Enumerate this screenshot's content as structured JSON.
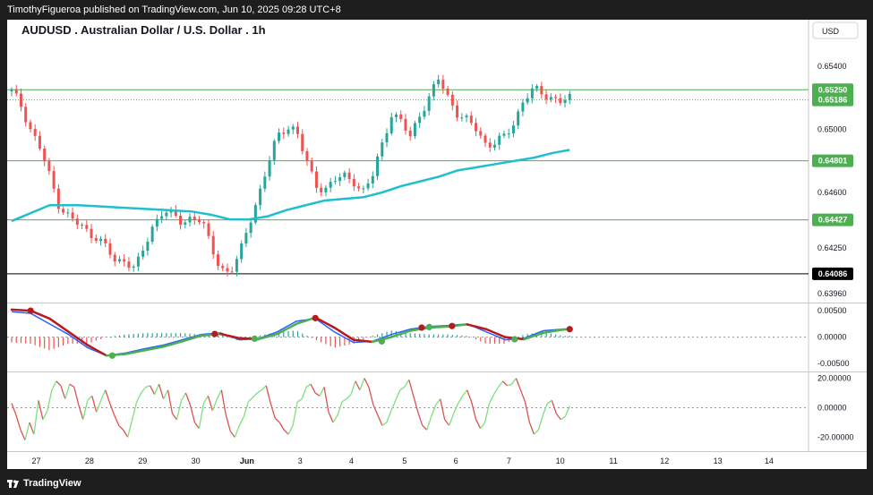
{
  "header": {
    "publisher_line": "TimothyFigueroa published on TradingView.com, Jun 10, 2025 09:28 UTC+8"
  },
  "footer": {
    "brand": "TradingView"
  },
  "colors": {
    "bull_candle": "#26a69a",
    "bear_candle": "#ef5350",
    "ma_line": "#1fbfcf",
    "level_line": "#4caf50",
    "macd_line": "#2962ff",
    "signal_line_up": "#4caf50",
    "signal_line_down": "#b71c1c",
    "osc_up": "#7ee07e",
    "osc_down": "#e05050"
  },
  "chart_data": {
    "type": "candlestick",
    "symbol_title": "AUDUSD . Australian Dollar / U.S. Dollar . 1h",
    "currency": "USD",
    "x_tick_labels": [
      "27",
      "28",
      "29",
      "30",
      "Jun",
      "3",
      "4",
      "5",
      "6",
      "7",
      "10",
      "11",
      "12",
      "13",
      "14"
    ],
    "y_tick_labels": [
      "0.65400",
      "0.65000",
      "0.64600",
      "0.64250",
      "0.63960"
    ],
    "y_range": [
      0.6391,
      0.6558
    ],
    "horizontal_levels": [
      {
        "label": "0.65250",
        "value": 0.6525,
        "kind": "green"
      },
      {
        "label": "0.65186",
        "value": 0.65186,
        "kind": "current"
      },
      {
        "label": "0.64801",
        "value": 0.64801,
        "kind": "green"
      },
      {
        "label": "0.64427",
        "value": 0.64427,
        "kind": "green"
      },
      {
        "label": "0.64086",
        "value": 0.64086,
        "kind": "black"
      }
    ],
    "close_path": [
      [
        0.0,
        0.6524
      ],
      [
        0.5,
        0.6515
      ],
      [
        1.0,
        0.65
      ],
      [
        1.5,
        0.6488
      ],
      [
        2.0,
        0.647
      ],
      [
        2.5,
        0.6452
      ],
      [
        3.0,
        0.6445
      ],
      [
        3.5,
        0.644
      ],
      [
        4.0,
        0.6435
      ],
      [
        4.5,
        0.6432
      ],
      [
        5.0,
        0.6425
      ],
      [
        5.5,
        0.6415
      ],
      [
        6.0,
        0.6418
      ],
      [
        6.5,
        0.6412
      ],
      [
        7.0,
        0.6425
      ],
      [
        7.5,
        0.644
      ],
      [
        8.0,
        0.645
      ],
      [
        8.5,
        0.6445
      ],
      [
        9.0,
        0.644
      ],
      [
        9.5,
        0.6445
      ],
      [
        10.0,
        0.6443
      ],
      [
        10.5,
        0.6425
      ],
      [
        11.0,
        0.6412
      ],
      [
        11.5,
        0.641
      ],
      [
        12.0,
        0.642
      ],
      [
        12.5,
        0.644
      ],
      [
        13.0,
        0.6458
      ],
      [
        13.5,
        0.6478
      ],
      [
        14.0,
        0.6495
      ],
      [
        14.5,
        0.6502
      ],
      [
        15.0,
        0.65
      ],
      [
        15.5,
        0.648
      ],
      [
        16.0,
        0.6465
      ],
      [
        16.5,
        0.6462
      ],
      [
        17.0,
        0.6468
      ],
      [
        17.5,
        0.647
      ],
      [
        18.0,
        0.6468
      ],
      [
        18.5,
        0.646
      ],
      [
        19.0,
        0.647
      ],
      [
        19.5,
        0.649
      ],
      [
        20.0,
        0.651
      ],
      [
        20.5,
        0.6505
      ],
      [
        21.0,
        0.6495
      ],
      [
        21.5,
        0.651
      ],
      [
        22.0,
        0.652
      ],
      [
        22.5,
        0.6532
      ],
      [
        23.0,
        0.652
      ],
      [
        23.5,
        0.651
      ],
      [
        24.0,
        0.6505
      ],
      [
        24.5,
        0.65
      ],
      [
        25.0,
        0.649
      ],
      [
        25.5,
        0.6492
      ],
      [
        26.0,
        0.6495
      ],
      [
        26.5,
        0.6505
      ],
      [
        27.0,
        0.652
      ],
      [
        27.5,
        0.6525
      ],
      [
        28.0,
        0.6522
      ],
      [
        28.5,
        0.652
      ],
      [
        29.0,
        0.6518
      ],
      [
        29.4,
        0.6519
      ]
    ],
    "ma_path": [
      [
        0.0,
        0.6442
      ],
      [
        2.0,
        0.6452
      ],
      [
        3.5,
        0.6452
      ],
      [
        5.0,
        0.6451
      ],
      [
        6.5,
        0.645
      ],
      [
        8.0,
        0.6449
      ],
      [
        9.5,
        0.6448
      ],
      [
        10.5,
        0.6446
      ],
      [
        11.5,
        0.6443
      ],
      [
        12.5,
        0.6443
      ],
      [
        13.5,
        0.6445
      ],
      [
        14.5,
        0.6449
      ],
      [
        15.5,
        0.6452
      ],
      [
        16.5,
        0.6455
      ],
      [
        17.5,
        0.6456
      ],
      [
        18.5,
        0.6457
      ],
      [
        19.5,
        0.646
      ],
      [
        20.5,
        0.6464
      ],
      [
        21.5,
        0.6467
      ],
      [
        22.5,
        0.647
      ],
      [
        23.5,
        0.6474
      ],
      [
        24.5,
        0.6476
      ],
      [
        25.5,
        0.6478
      ],
      [
        26.5,
        0.648
      ],
      [
        27.5,
        0.6482
      ],
      [
        28.5,
        0.6485
      ],
      [
        29.4,
        0.6487
      ]
    ],
    "macd_panel": {
      "y_tick_labels": [
        "0.00500",
        "0.00000",
        "-0.00500"
      ],
      "y_range": [
        -0.0065,
        0.0062
      ],
      "macd_path": [
        [
          0.0,
          0.0048
        ],
        [
          1.0,
          0.0045
        ],
        [
          2.0,
          0.0025
        ],
        [
          3.0,
          0.0005
        ],
        [
          4.0,
          -0.002
        ],
        [
          5.0,
          -0.0035
        ],
        [
          6.0,
          -0.003
        ],
        [
          7.0,
          -0.0022
        ],
        [
          8.0,
          -0.0015
        ],
        [
          9.0,
          -0.0005
        ],
        [
          10.0,
          0.0005
        ],
        [
          11.0,
          0.0008
        ],
        [
          12.0,
          -0.0005
        ],
        [
          13.0,
          -0.0003
        ],
        [
          14.0,
          0.001
        ],
        [
          15.0,
          0.003
        ],
        [
          16.0,
          0.0035
        ],
        [
          17.0,
          0.001
        ],
        [
          18.0,
          -0.001
        ],
        [
          19.0,
          -0.0008
        ],
        [
          20.0,
          0.0005
        ],
        [
          21.0,
          0.0015
        ],
        [
          22.0,
          0.002
        ],
        [
          23.0,
          0.0022
        ],
        [
          24.0,
          0.0025
        ],
        [
          25.0,
          0.001
        ],
        [
          26.0,
          -0.0005
        ],
        [
          27.0,
          -0.0002
        ],
        [
          28.0,
          0.0012
        ],
        [
          29.0,
          0.0015
        ],
        [
          29.4,
          0.0016
        ]
      ],
      "signal_path": [
        [
          0.0,
          0.0052
        ],
        [
          1.0,
          0.005
        ],
        [
          2.0,
          0.0035
        ],
        [
          3.0,
          0.001
        ],
        [
          4.0,
          -0.0015
        ],
        [
          5.0,
          -0.0035
        ],
        [
          6.0,
          -0.0032
        ],
        [
          7.0,
          -0.0025
        ],
        [
          8.0,
          -0.0018
        ],
        [
          9.0,
          -0.0008
        ],
        [
          10.0,
          0.0003
        ],
        [
          11.0,
          0.0006
        ],
        [
          12.0,
          -0.0002
        ],
        [
          13.0,
          -0.0004
        ],
        [
          14.0,
          0.0006
        ],
        [
          15.0,
          0.0025
        ],
        [
          16.0,
          0.0037
        ],
        [
          17.0,
          0.0018
        ],
        [
          18.0,
          -0.0005
        ],
        [
          19.0,
          -0.0009
        ],
        [
          20.0,
          0.0
        ],
        [
          21.0,
          0.0012
        ],
        [
          22.0,
          0.0018
        ],
        [
          23.0,
          0.002
        ],
        [
          24.0,
          0.0024
        ],
        [
          25.0,
          0.0015
        ],
        [
          26.0,
          0.0
        ],
        [
          27.0,
          -0.0004
        ],
        [
          28.0,
          0.0008
        ],
        [
          29.0,
          0.0014
        ],
        [
          29.4,
          0.0015
        ]
      ],
      "cross_markers": [
        {
          "x": 1.0,
          "y": 0.005,
          "kind": "down"
        },
        {
          "x": 5.3,
          "y": -0.0035,
          "kind": "up"
        },
        {
          "x": 10.7,
          "y": 0.0006,
          "kind": "down"
        },
        {
          "x": 12.8,
          "y": -0.0003,
          "kind": "up"
        },
        {
          "x": 16.0,
          "y": 0.0036,
          "kind": "down"
        },
        {
          "x": 19.5,
          "y": -0.0008,
          "kind": "up"
        },
        {
          "x": 21.6,
          "y": 0.0018,
          "kind": "down"
        },
        {
          "x": 22.0,
          "y": 0.0019,
          "kind": "up"
        },
        {
          "x": 23.2,
          "y": 0.0021,
          "kind": "down"
        },
        {
          "x": 26.5,
          "y": -0.0004,
          "kind": "up"
        },
        {
          "x": 29.4,
          "y": 0.0015,
          "kind": "down"
        }
      ]
    },
    "osc_panel": {
      "y_tick_labels": [
        "20.00000",
        "0.00000",
        "-20.00000"
      ],
      "y_range": [
        -27,
        24
      ],
      "values": [
        3,
        -5,
        -15,
        -22,
        -10,
        -18,
        5,
        -8,
        -2,
        12,
        18,
        15,
        6,
        16,
        14,
        2,
        -8,
        5,
        8,
        -3,
        5,
        12,
        3,
        -5,
        -12,
        -15,
        -20,
        -8,
        4,
        10,
        14,
        15,
        9,
        16,
        6,
        12,
        -4,
        -8,
        5,
        10,
        2,
        -10,
        -14,
        3,
        8,
        -2,
        6,
        12,
        -5,
        -16,
        -20,
        -12,
        -6,
        4,
        7,
        10,
        12,
        15,
        3,
        -7,
        -10,
        -15,
        -18,
        -12,
        4,
        6,
        14,
        16,
        10,
        8,
        14,
        -3,
        -10,
        -5,
        4,
        6,
        9,
        18,
        12,
        20,
        14,
        2,
        -5,
        -12,
        -10,
        -2,
        5,
        12,
        14,
        19,
        8,
        -3,
        -12,
        -15,
        -6,
        2,
        6,
        -8,
        -12,
        -4,
        3,
        8,
        12,
        4,
        -8,
        -14,
        -10,
        3,
        9,
        14,
        18,
        15,
        16,
        20,
        12,
        4,
        -10,
        -18,
        -15,
        -5,
        3,
        5,
        -4,
        -8,
        -6,
        1
      ]
    }
  }
}
